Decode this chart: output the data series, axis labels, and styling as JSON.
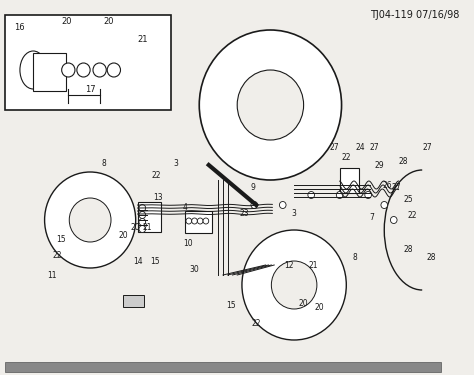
{
  "title": "TJ04-119 07/16/98",
  "bg_color": "#f0eeea",
  "line_color": "#1a1a1a",
  "text_color": "#1a1a1a",
  "bottom_bar_color": "#888888",
  "figsize": [
    4.74,
    3.75
  ],
  "dpi": 100
}
